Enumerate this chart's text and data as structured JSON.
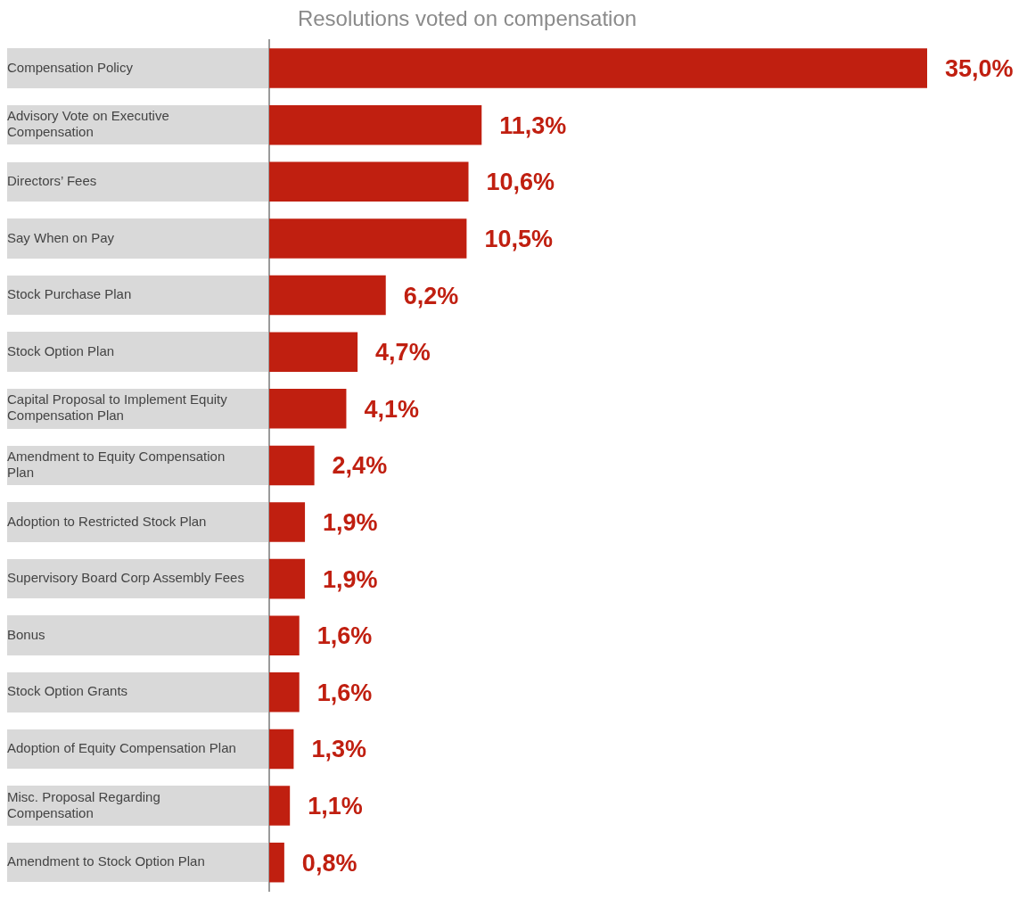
{
  "chart_data": {
    "type": "bar",
    "orientation": "horizontal",
    "title": "Resolutions voted on compensation",
    "categories": [
      "Compensation Policy",
      "Advisory Vote on Executive Compensation",
      "Directors’ Fees",
      "Say When on Pay",
      "Stock Purchase Plan",
      "Stock Option Plan",
      "Capital Proposal to Implement Equity Compensation Plan",
      "Amendment to Equity Compensation Plan",
      "Adoption to Restricted Stock Plan",
      "Supervisory Board Corp Assembly Fees",
      "Bonus",
      "Stock Option Grants",
      "Adoption of Equity Compensation Plan",
      "Misc. Proposal Regarding Compensation",
      "Amendment to Stock Option Plan"
    ],
    "values": [
      35.0,
      11.3,
      10.6,
      10.5,
      6.2,
      4.7,
      4.1,
      2.4,
      1.9,
      1.9,
      1.6,
      1.6,
      1.3,
      1.1,
      0.8
    ],
    "value_labels": [
      "35,0%",
      "11,3%",
      "10,6%",
      "10,5%",
      "6,2%",
      "4,7%",
      "4,1%",
      "2,4%",
      "1,9%",
      "1,9%",
      "1,6%",
      "1,6%",
      "1,3%",
      "1,1%",
      "0,8%"
    ],
    "color": "#c01f10",
    "grid": false,
    "legend": false
  }
}
